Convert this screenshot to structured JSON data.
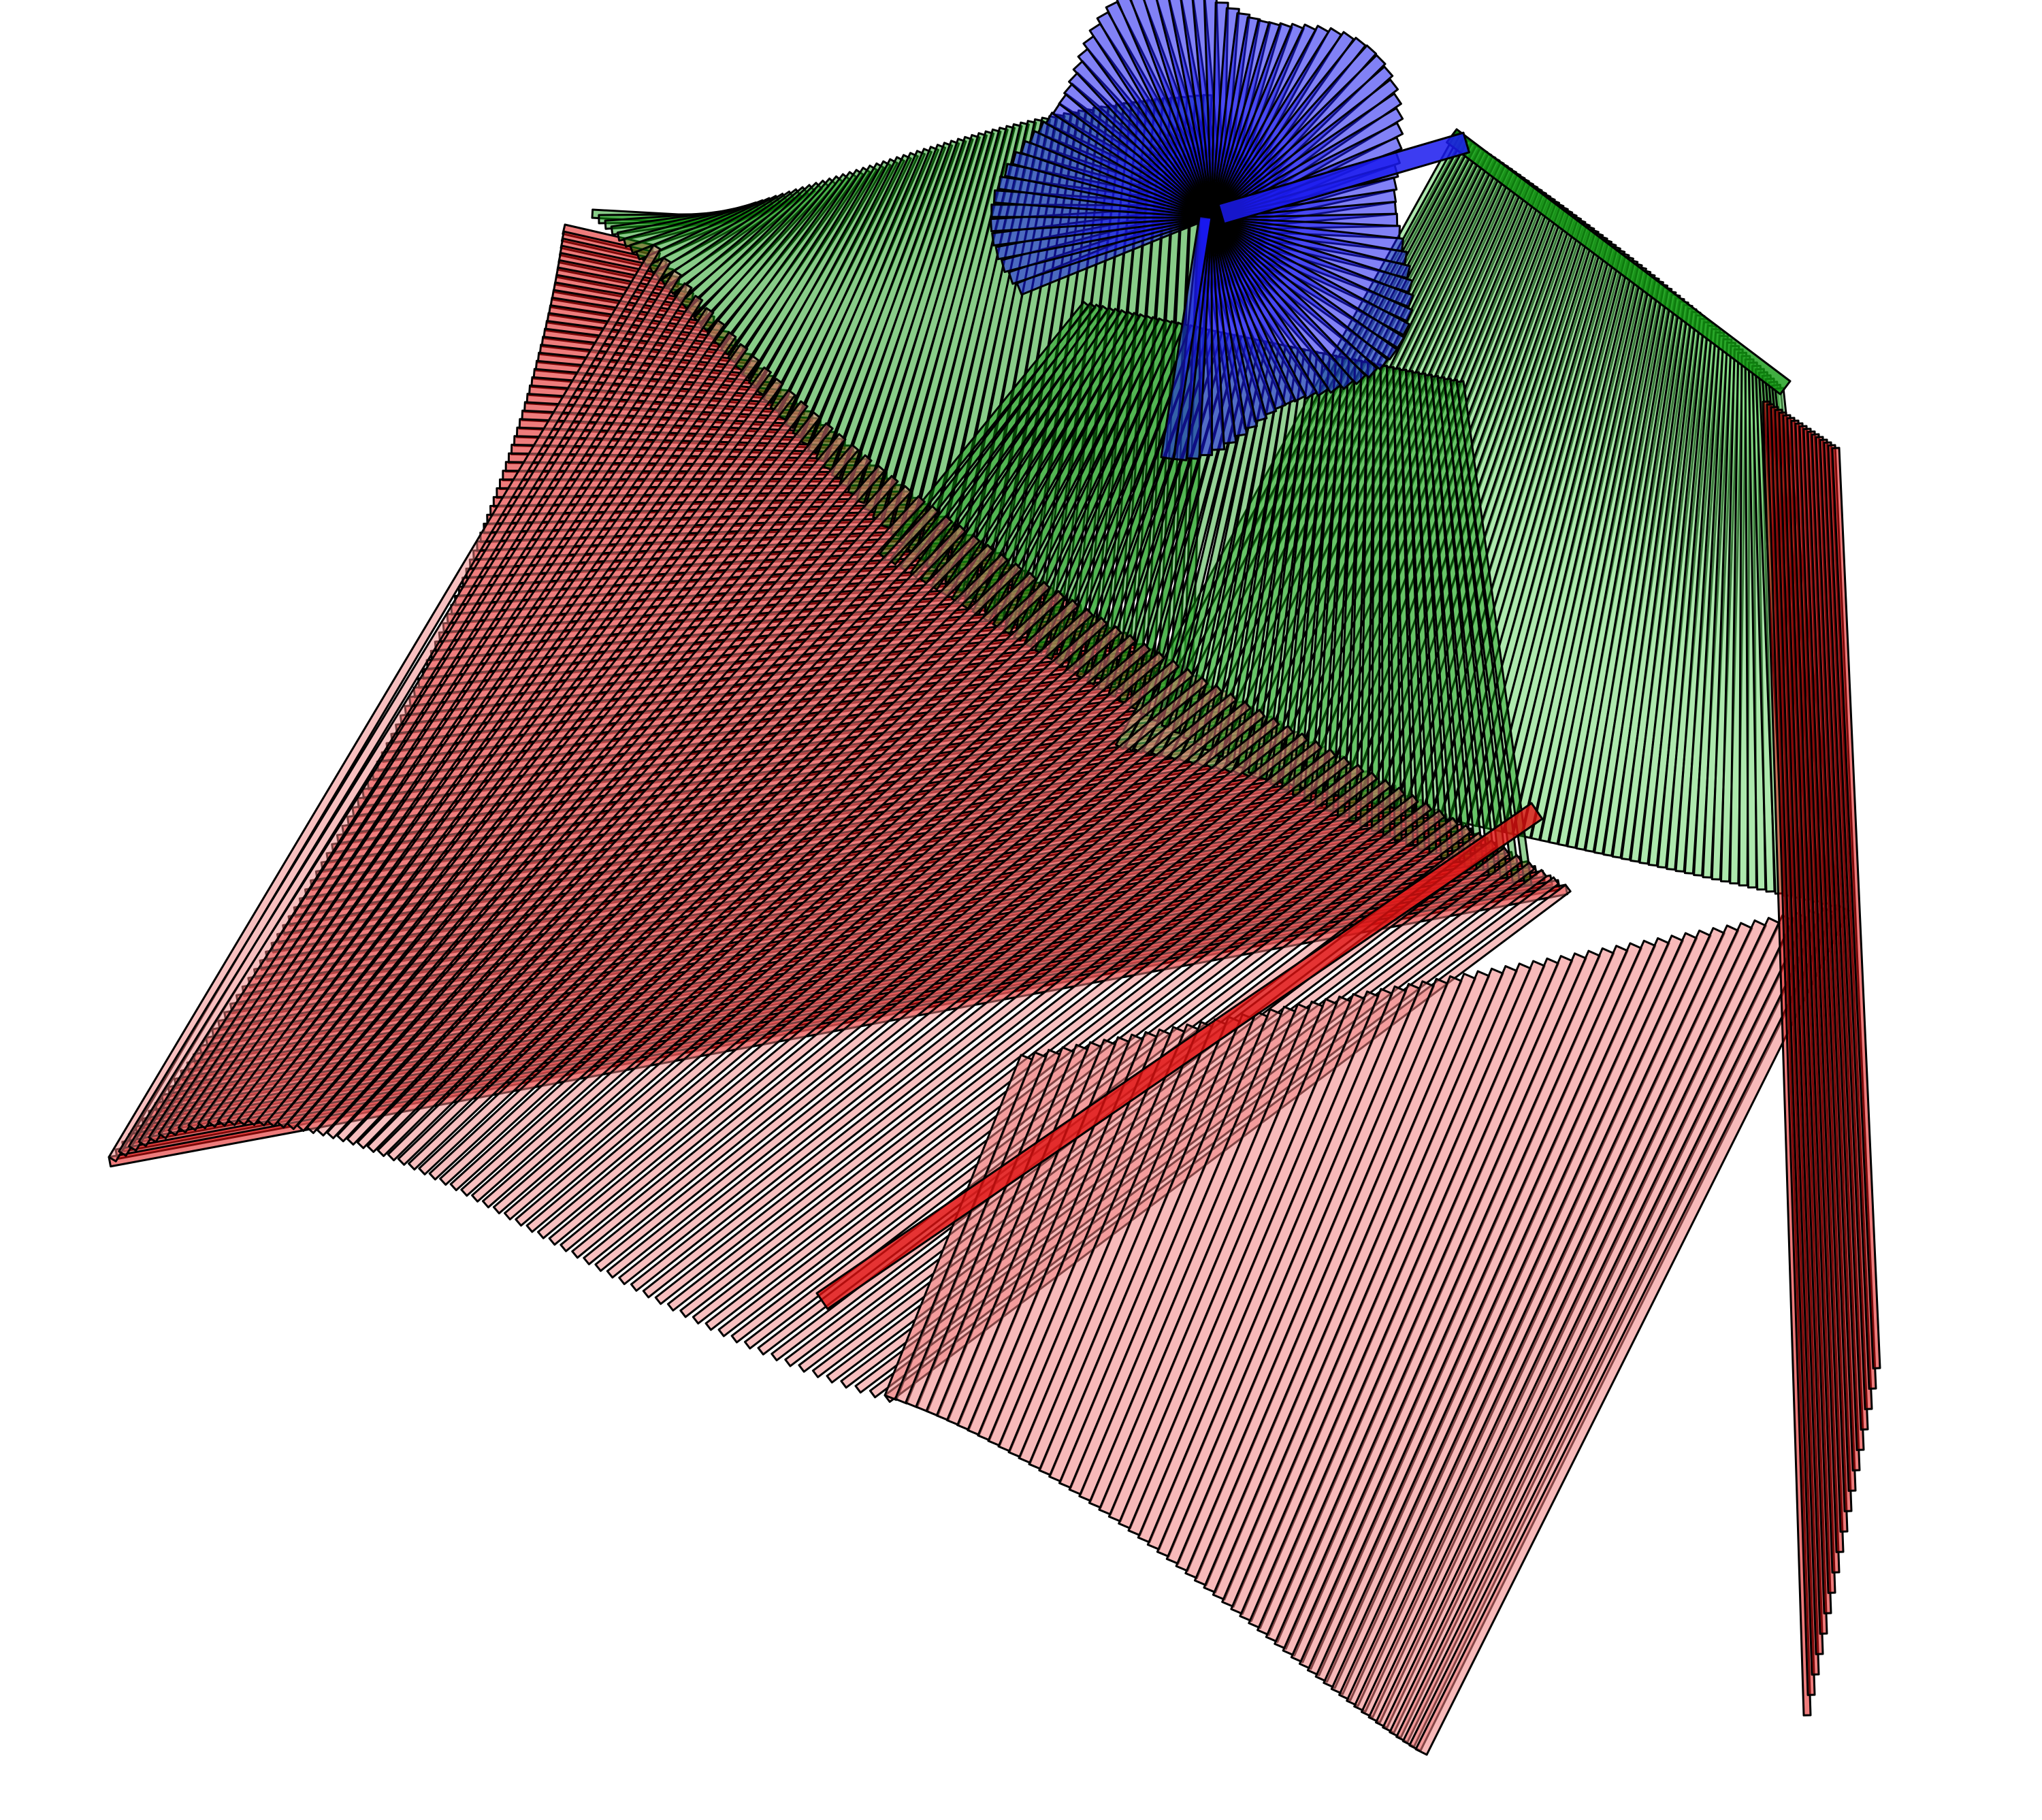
{
  "scene": {
    "background": "#ffffff",
    "outline_color": "#000000",
    "groups": [
      {
        "id": "red-bundle",
        "color": "#e01010",
        "fill": "#f08080",
        "opacity": 0.55
      },
      {
        "id": "green-bundle",
        "color": "#129a12",
        "fill": "#6ad66a",
        "opacity": 0.55
      },
      {
        "id": "blue-bundle",
        "color": "#1a1aee",
        "fill": "#6a6af4",
        "opacity": 0.6
      }
    ]
  }
}
